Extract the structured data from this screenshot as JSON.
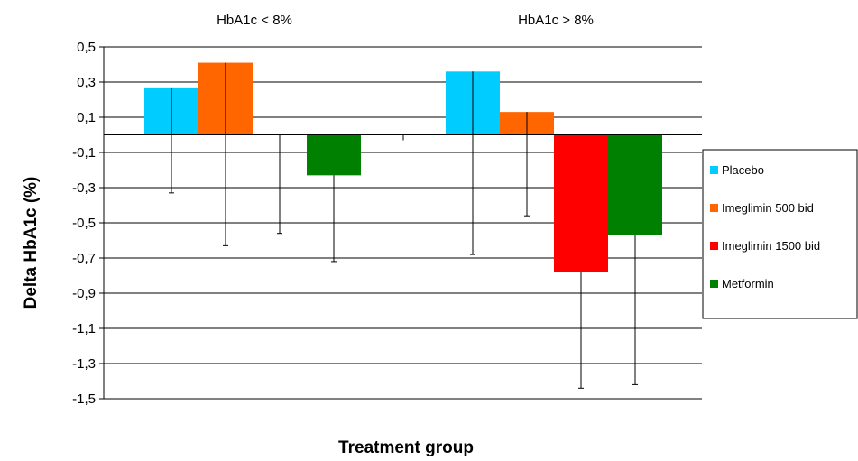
{
  "chart_data": {
    "type": "bar",
    "title": "",
    "xlabel": "Treatment group",
    "ylabel": "Delta HbA1c (%)",
    "ylim": [
      -1.5,
      0.5
    ],
    "yticks": [
      0.5,
      0.3,
      0.1,
      -0.1,
      -0.3,
      -0.5,
      -0.7,
      -0.9,
      -1.1,
      -1.3,
      -1.5
    ],
    "ytick_labels": [
      "0,5",
      "0,3",
      "0,1",
      "-0,1",
      "-0,3",
      "-0,5",
      "-0,7",
      "-0,9",
      "-1,1",
      "-1,3",
      "-1,5"
    ],
    "grid": true,
    "categories": [
      "HbA1c < 8%",
      "HbA1c > 8%"
    ],
    "series": [
      {
        "name": "Placebo",
        "color": "#00CCFF",
        "values": [
          0.27,
          0.36
        ],
        "error_low": [
          -0.33,
          -0.68
        ],
        "error_high": [
          0.27,
          0.36
        ]
      },
      {
        "name": "Imeglimin 500 bid",
        "color": "#FF6600",
        "values": [
          0.41,
          0.13
        ],
        "error_low": [
          -0.63,
          -0.46
        ],
        "error_high": [
          0.41,
          0.13
        ]
      },
      {
        "name": "Imeglimin 1500 bid",
        "color": "#FF0000",
        "values": [
          0.0,
          -0.78
        ],
        "error_low": [
          -0.56,
          -1.44
        ],
        "error_high": [
          0.0,
          -0.78
        ]
      },
      {
        "name": "Metformin",
        "color": "#008000",
        "values": [
          -0.23,
          -0.57
        ],
        "error_low": [
          -0.72,
          -1.42
        ],
        "error_high": [
          -0.23,
          -0.57
        ]
      }
    ],
    "legend_position": "right"
  }
}
